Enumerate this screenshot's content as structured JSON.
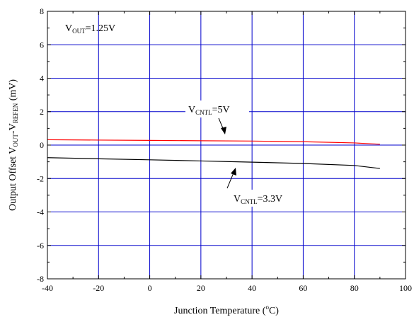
{
  "chart_data": {
    "type": "line",
    "title": "",
    "xlabel": {
      "text": "Junction Temperature (",
      "sup": "o",
      "tail": "C)"
    },
    "ylabel": {
      "parts": [
        {
          "t": "Output Offset V",
          "sub": false
        },
        {
          "t": "OUT",
          "sub": true
        },
        {
          "t": "-V",
          "sub": false
        },
        {
          "t": "REFEN",
          "sub": true
        },
        {
          "t": " (mV)",
          "sub": false
        }
      ]
    },
    "xlim": [
      -40,
      100
    ],
    "ylim": [
      -8,
      8
    ],
    "x_ticks": [
      -40,
      -20,
      0,
      20,
      40,
      60,
      80,
      100
    ],
    "y_ticks": [
      -8,
      -6,
      -4,
      -2,
      0,
      2,
      4,
      6,
      8
    ],
    "grid": true,
    "grid_color": "#0000cc",
    "series": [
      {
        "color": "#ff0000",
        "x": [
          -40,
          -20,
          0,
          20,
          40,
          60,
          80,
          90
        ],
        "y": [
          0.32,
          0.3,
          0.28,
          0.26,
          0.24,
          0.2,
          0.13,
          0.05
        ]
      },
      {
        "color": "#000000",
        "x": [
          -40,
          -20,
          0,
          20,
          40,
          60,
          80,
          90
        ],
        "y": [
          -0.75,
          -0.82,
          -0.88,
          -0.95,
          -1.02,
          -1.1,
          -1.22,
          -1.4
        ]
      }
    ],
    "annotations": [
      {
        "id": "vout",
        "parts": [
          {
            "t": "V",
            "sub": false
          },
          {
            "t": "OUT",
            "sub": true
          },
          {
            "t": "=1.25V",
            "sub": false
          }
        ]
      },
      {
        "id": "vcntl5",
        "parts": [
          {
            "t": "V",
            "sub": false
          },
          {
            "t": "CNTL",
            "sub": true
          },
          {
            "t": "=5V",
            "sub": false
          }
        ]
      },
      {
        "id": "vcntl33",
        "parts": [
          {
            "t": "V",
            "sub": false
          },
          {
            "t": "CNTL",
            "sub": true
          },
          {
            "t": "=3.3V",
            "sub": false
          }
        ]
      }
    ]
  }
}
